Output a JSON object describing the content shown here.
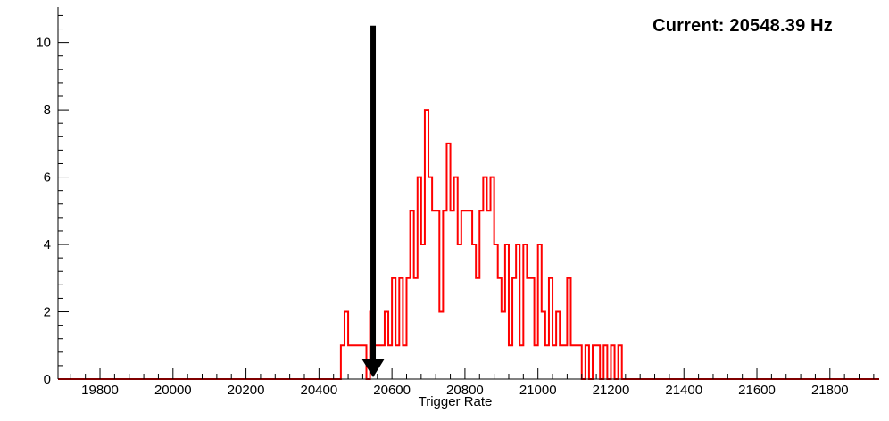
{
  "chart_data": {
    "type": "bar",
    "subtype": "step-histogram",
    "title": "",
    "annotation": "Current: 20548.39 Hz",
    "current_value_hz": 20548.39,
    "xlabel": "Trigger Rate",
    "ylabel": "",
    "xlim": [
      19685,
      21935
    ],
    "ylim": [
      0,
      11.05
    ],
    "x_major_ticks": [
      19800,
      20000,
      20200,
      20400,
      20600,
      20800,
      21000,
      21200,
      21400,
      21600,
      21800
    ],
    "x_minor_step": 40,
    "y_major_ticks": [
      0,
      2,
      4,
      6,
      8,
      10
    ],
    "y_minor_step": 0.4,
    "grid": false,
    "legend": null,
    "bin_start": 20450,
    "bin_width": 10,
    "counts": [
      0,
      1,
      2,
      1,
      1,
      1,
      1,
      1,
      0,
      2,
      1,
      1,
      1,
      2,
      1,
      3,
      1,
      3,
      1,
      3,
      5,
      3,
      6,
      4,
      8,
      6,
      5,
      5,
      2,
      5,
      7,
      5,
      6,
      4,
      5,
      5,
      5,
      4,
      3,
      5,
      6,
      5,
      6,
      4,
      3,
      2,
      4,
      1,
      3,
      4,
      1,
      4,
      3,
      3,
      1,
      4,
      2,
      1,
      3,
      1,
      2,
      1,
      1,
      3,
      1,
      1,
      1,
      0,
      1,
      0,
      1,
      1,
      0,
      1,
      0,
      1,
      0,
      1,
      0
    ],
    "histogram_color": "#ff0000",
    "axis_color": "#000000",
    "arrow": {
      "x": 20548.39,
      "y_top": 10.5,
      "color": "#000000"
    }
  }
}
